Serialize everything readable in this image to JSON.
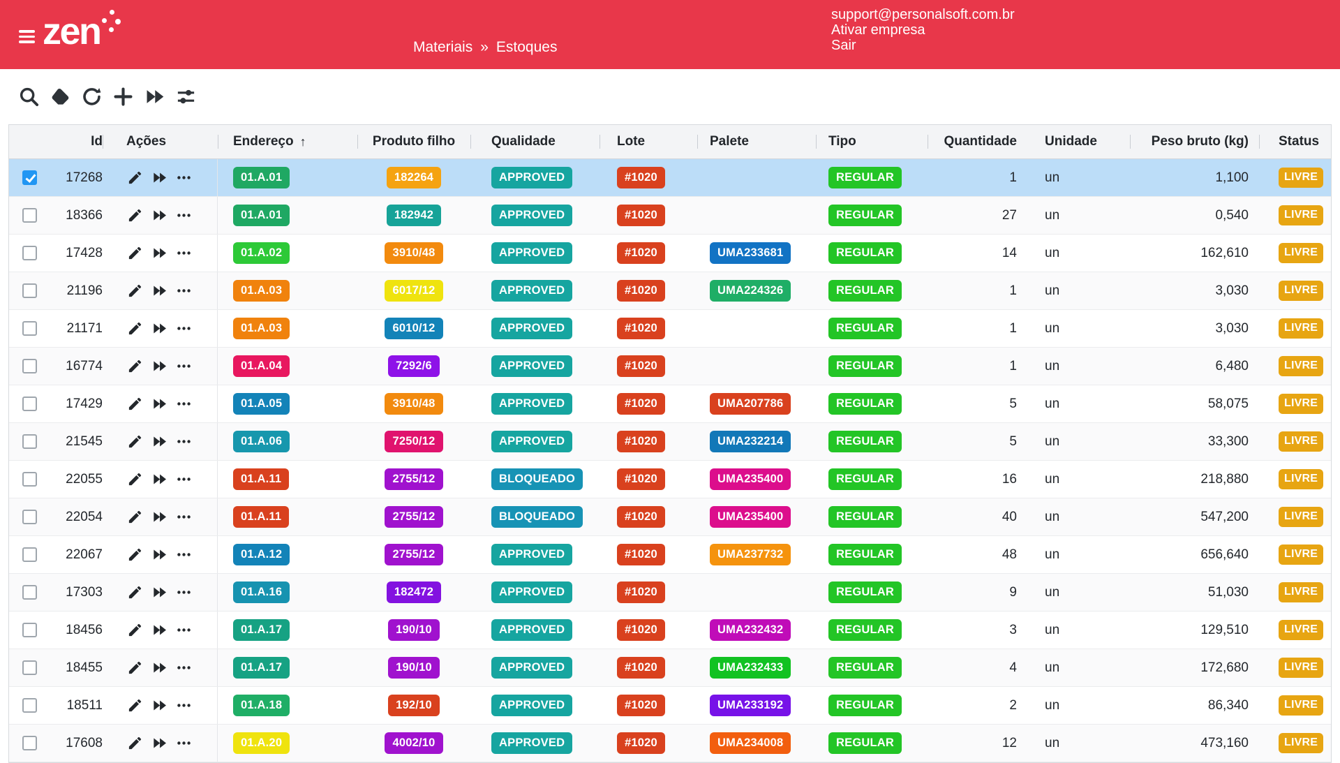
{
  "header": {
    "brand": "zen",
    "breadcrumb": [
      "Materiais",
      "»",
      "Estoques"
    ],
    "links": [
      {
        "label": "support@personalsoft.com.br"
      },
      {
        "label": "Ativar empresa"
      },
      {
        "label": "Sair"
      }
    ],
    "bg_color": "#E8374A"
  },
  "toolbar": {
    "buttons": [
      {
        "name": "search-icon"
      },
      {
        "name": "eraser-icon"
      },
      {
        "name": "refresh-icon"
      },
      {
        "name": "add-icon"
      },
      {
        "name": "fast-forward-icon"
      },
      {
        "name": "filter-icon"
      }
    ]
  },
  "table": {
    "columns": [
      {
        "key": "select",
        "label": ""
      },
      {
        "key": "id",
        "label": "Id"
      },
      {
        "key": "acoes",
        "label": "Ações"
      },
      {
        "key": "endereco",
        "label": "Endereço",
        "sort": "asc"
      },
      {
        "key": "produto",
        "label": "Produto filho"
      },
      {
        "key": "qualidade",
        "label": "Qualidade"
      },
      {
        "key": "lote",
        "label": "Lote"
      },
      {
        "key": "palete",
        "label": "Palete"
      },
      {
        "key": "tipo",
        "label": "Tipo"
      },
      {
        "key": "quantidade",
        "label": "Quantidade"
      },
      {
        "key": "unidade",
        "label": "Unidade"
      },
      {
        "key": "peso",
        "label": "Peso bruto (kg)"
      },
      {
        "key": "status",
        "label": "Status"
      }
    ],
    "sort_arrow": "↑",
    "row_actions": [
      "edit-icon",
      "fast-forward-icon",
      "more-actions-icon"
    ],
    "rows": [
      {
        "selected": true,
        "id": "17268",
        "endereco": {
          "text": "01.A.01",
          "color": "#1FA863"
        },
        "produto": {
          "text": "182264",
          "color": "#F5A311"
        },
        "qualidade": {
          "text": "APPROVED",
          "color": "#16A5A0"
        },
        "lote": {
          "text": "#1020",
          "color": "#D9411E"
        },
        "palete": null,
        "tipo": {
          "text": "REGULAR",
          "color": "#23C526"
        },
        "quantidade": "1",
        "unidade": "un",
        "peso": "1,100",
        "status": {
          "text": "LIVRE",
          "color": "#E7A512"
        }
      },
      {
        "selected": false,
        "id": "18366",
        "endereco": {
          "text": "01.A.01",
          "color": "#1FA863"
        },
        "produto": {
          "text": "182942",
          "color": "#17A398"
        },
        "qualidade": {
          "text": "APPROVED",
          "color": "#16A5A0"
        },
        "lote": {
          "text": "#1020",
          "color": "#D9411E"
        },
        "palete": null,
        "tipo": {
          "text": "REGULAR",
          "color": "#23C526"
        },
        "quantidade": "27",
        "unidade": "un",
        "peso": "0,540",
        "status": {
          "text": "LIVRE",
          "color": "#E7A512"
        }
      },
      {
        "selected": false,
        "id": "17428",
        "endereco": {
          "text": "01.A.02",
          "color": "#2DC937"
        },
        "produto": {
          "text": "3910/48",
          "color": "#F28A0E"
        },
        "qualidade": {
          "text": "APPROVED",
          "color": "#16A5A0"
        },
        "lote": {
          "text": "#1020",
          "color": "#D9411E"
        },
        "palete": {
          "text": "UMA233681",
          "color": "#1273C4"
        },
        "tipo": {
          "text": "REGULAR",
          "color": "#23C526"
        },
        "quantidade": "14",
        "unidade": "un",
        "peso": "162,610",
        "status": {
          "text": "LIVRE",
          "color": "#E7A512"
        }
      },
      {
        "selected": false,
        "id": "21196",
        "endereco": {
          "text": "01.A.03",
          "color": "#F0820D"
        },
        "produto": {
          "text": "6017/12",
          "color": "#EFE30E"
        },
        "qualidade": {
          "text": "APPROVED",
          "color": "#16A5A0"
        },
        "lote": {
          "text": "#1020",
          "color": "#D9411E"
        },
        "palete": {
          "text": "UMA224326",
          "color": "#1FAE66"
        },
        "tipo": {
          "text": "REGULAR",
          "color": "#23C526"
        },
        "quantidade": "1",
        "unidade": "un",
        "peso": "3,030",
        "status": {
          "text": "LIVRE",
          "color": "#E7A512"
        }
      },
      {
        "selected": false,
        "id": "21171",
        "endereco": {
          "text": "01.A.03",
          "color": "#F0820D"
        },
        "produto": {
          "text": "6010/12",
          "color": "#1383B8"
        },
        "qualidade": {
          "text": "APPROVED",
          "color": "#16A5A0"
        },
        "lote": {
          "text": "#1020",
          "color": "#D9411E"
        },
        "palete": null,
        "tipo": {
          "text": "REGULAR",
          "color": "#23C526"
        },
        "quantidade": "1",
        "unidade": "un",
        "peso": "3,030",
        "status": {
          "text": "LIVRE",
          "color": "#E7A512"
        }
      },
      {
        "selected": false,
        "id": "16774",
        "endereco": {
          "text": "01.A.04",
          "color": "#E8175F"
        },
        "produto": {
          "text": "7292/6",
          "color": "#8E12E8"
        },
        "qualidade": {
          "text": "APPROVED",
          "color": "#16A5A0"
        },
        "lote": {
          "text": "#1020",
          "color": "#D9411E"
        },
        "palete": null,
        "tipo": {
          "text": "REGULAR",
          "color": "#23C526"
        },
        "quantidade": "1",
        "unidade": "un",
        "peso": "6,480",
        "status": {
          "text": "LIVRE",
          "color": "#E7A512"
        }
      },
      {
        "selected": false,
        "id": "17429",
        "endereco": {
          "text": "01.A.05",
          "color": "#1383B8"
        },
        "produto": {
          "text": "3910/48",
          "color": "#F28A0E"
        },
        "qualidade": {
          "text": "APPROVED",
          "color": "#16A5A0"
        },
        "lote": {
          "text": "#1020",
          "color": "#D9411E"
        },
        "palete": {
          "text": "UMA207786",
          "color": "#D9411E"
        },
        "tipo": {
          "text": "REGULAR",
          "color": "#23C526"
        },
        "quantidade": "5",
        "unidade": "un",
        "peso": "58,075",
        "status": {
          "text": "LIVRE",
          "color": "#E7A512"
        }
      },
      {
        "selected": false,
        "id": "21545",
        "endereco": {
          "text": "01.A.06",
          "color": "#1797AD"
        },
        "produto": {
          "text": "7250/12",
          "color": "#E0136E"
        },
        "qualidade": {
          "text": "APPROVED",
          "color": "#16A5A0"
        },
        "lote": {
          "text": "#1020",
          "color": "#D9411E"
        },
        "palete": {
          "text": "UMA232214",
          "color": "#1278B8"
        },
        "tipo": {
          "text": "REGULAR",
          "color": "#23C526"
        },
        "quantidade": "5",
        "unidade": "un",
        "peso": "33,300",
        "status": {
          "text": "LIVRE",
          "color": "#E7A512"
        }
      },
      {
        "selected": false,
        "id": "22055",
        "endereco": {
          "text": "01.A.11",
          "color": "#D9411E"
        },
        "produto": {
          "text": "2755/12",
          "color": "#A012CE"
        },
        "qualidade": {
          "text": "BLOQUEADO",
          "color": "#1793B5"
        },
        "lote": {
          "text": "#1020",
          "color": "#D9411E"
        },
        "palete": {
          "text": "UMA235400",
          "color": "#DC0E8C"
        },
        "tipo": {
          "text": "REGULAR",
          "color": "#23C526"
        },
        "quantidade": "16",
        "unidade": "un",
        "peso": "218,880",
        "status": {
          "text": "LIVRE",
          "color": "#E7A512"
        }
      },
      {
        "selected": false,
        "id": "22054",
        "endereco": {
          "text": "01.A.11",
          "color": "#D9411E"
        },
        "produto": {
          "text": "2755/12",
          "color": "#A012CE"
        },
        "qualidade": {
          "text": "BLOQUEADO",
          "color": "#1793B5"
        },
        "lote": {
          "text": "#1020",
          "color": "#D9411E"
        },
        "palete": {
          "text": "UMA235400",
          "color": "#DC0E8C"
        },
        "tipo": {
          "text": "REGULAR",
          "color": "#23C526"
        },
        "quantidade": "40",
        "unidade": "un",
        "peso": "547,200",
        "status": {
          "text": "LIVRE",
          "color": "#E7A512"
        }
      },
      {
        "selected": false,
        "id": "22067",
        "endereco": {
          "text": "01.A.12",
          "color": "#1383B8"
        },
        "produto": {
          "text": "2755/12",
          "color": "#A012CE"
        },
        "qualidade": {
          "text": "APPROVED",
          "color": "#16A5A0"
        },
        "lote": {
          "text": "#1020",
          "color": "#D9411E"
        },
        "palete": {
          "text": "UMA237732",
          "color": "#F5930E"
        },
        "tipo": {
          "text": "REGULAR",
          "color": "#23C526"
        },
        "quantidade": "48",
        "unidade": "un",
        "peso": "656,640",
        "status": {
          "text": "LIVRE",
          "color": "#E7A512"
        }
      },
      {
        "selected": false,
        "id": "17303",
        "endereco": {
          "text": "01.A.16",
          "color": "#1793B0"
        },
        "produto": {
          "text": "182472",
          "color": "#8312E0"
        },
        "qualidade": {
          "text": "APPROVED",
          "color": "#16A5A0"
        },
        "lote": {
          "text": "#1020",
          "color": "#D9411E"
        },
        "palete": null,
        "tipo": {
          "text": "REGULAR",
          "color": "#23C526"
        },
        "quantidade": "9",
        "unidade": "un",
        "peso": "51,030",
        "status": {
          "text": "LIVRE",
          "color": "#E7A512"
        }
      },
      {
        "selected": false,
        "id": "18456",
        "endereco": {
          "text": "01.A.17",
          "color": "#16A283"
        },
        "produto": {
          "text": "190/10",
          "color": "#A012CE"
        },
        "qualidade": {
          "text": "APPROVED",
          "color": "#16A5A0"
        },
        "lote": {
          "text": "#1020",
          "color": "#D9411E"
        },
        "palete": {
          "text": "UMA232432",
          "color": "#C00CB8"
        },
        "tipo": {
          "text": "REGULAR",
          "color": "#23C526"
        },
        "quantidade": "3",
        "unidade": "un",
        "peso": "129,510",
        "status": {
          "text": "LIVRE",
          "color": "#E7A512"
        }
      },
      {
        "selected": false,
        "id": "18455",
        "endereco": {
          "text": "01.A.17",
          "color": "#16A283"
        },
        "produto": {
          "text": "190/10",
          "color": "#A012CE"
        },
        "qualidade": {
          "text": "APPROVED",
          "color": "#16A5A0"
        },
        "lote": {
          "text": "#1020",
          "color": "#D9411E"
        },
        "palete": {
          "text": "UMA232433",
          "color": "#12C222"
        },
        "tipo": {
          "text": "REGULAR",
          "color": "#23C526"
        },
        "quantidade": "4",
        "unidade": "un",
        "peso": "172,680",
        "status": {
          "text": "LIVRE",
          "color": "#E7A512"
        }
      },
      {
        "selected": false,
        "id": "18511",
        "endereco": {
          "text": "01.A.18",
          "color": "#1FAE66"
        },
        "produto": {
          "text": "192/10",
          "color": "#D9411E"
        },
        "qualidade": {
          "text": "APPROVED",
          "color": "#16A5A0"
        },
        "lote": {
          "text": "#1020",
          "color": "#D9411E"
        },
        "palete": {
          "text": "UMA233192",
          "color": "#7712E8"
        },
        "tipo": {
          "text": "REGULAR",
          "color": "#23C526"
        },
        "quantidade": "2",
        "unidade": "un",
        "peso": "86,340",
        "status": {
          "text": "LIVRE",
          "color": "#E7A512"
        }
      },
      {
        "selected": false,
        "id": "17608",
        "endereco": {
          "text": "01.A.20",
          "color": "#EFE30E"
        },
        "produto": {
          "text": "4002/10",
          "color": "#A012CE"
        },
        "qualidade": {
          "text": "APPROVED",
          "color": "#16A5A0"
        },
        "lote": {
          "text": "#1020",
          "color": "#D9411E"
        },
        "palete": {
          "text": "UMA234008",
          "color": "#F25E0E"
        },
        "tipo": {
          "text": "REGULAR",
          "color": "#23C526"
        },
        "quantidade": "12",
        "unidade": "un",
        "peso": "473,160",
        "status": {
          "text": "LIVRE",
          "color": "#E7A512"
        }
      }
    ]
  },
  "colors": {
    "header_bg": "#E8374A",
    "selected_row_bg": "#BCDDF8",
    "checkbox_checked": "#2196F3",
    "table_header_bg": "#F3F4F6"
  }
}
